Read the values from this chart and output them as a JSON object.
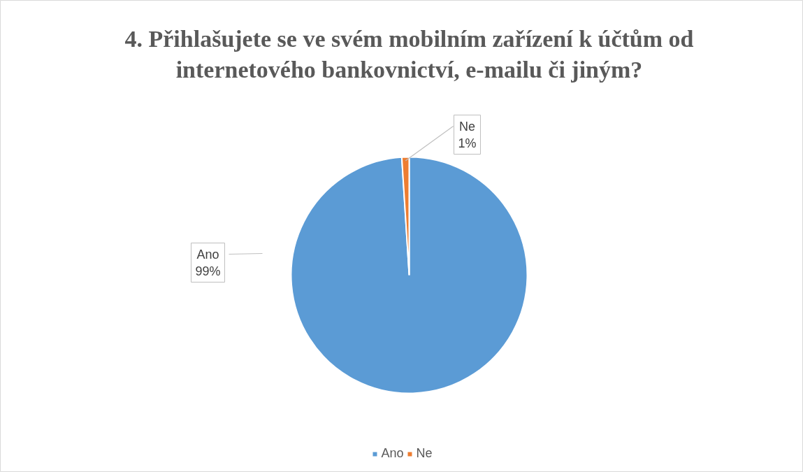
{
  "chart_data": {
    "type": "pie",
    "title": "4. Přihlašujete se ve svém mobilním zařízení k účtům od internetového bankovnictví, e-mailu či jiným?",
    "categories": [
      "Ano",
      "Ne"
    ],
    "values": [
      99,
      1
    ],
    "colors": [
      "#5b9bd5",
      "#ed7d31"
    ],
    "value_labels": [
      "Ano\n99%",
      "Ne\n1%"
    ],
    "legend": "bottom"
  }
}
